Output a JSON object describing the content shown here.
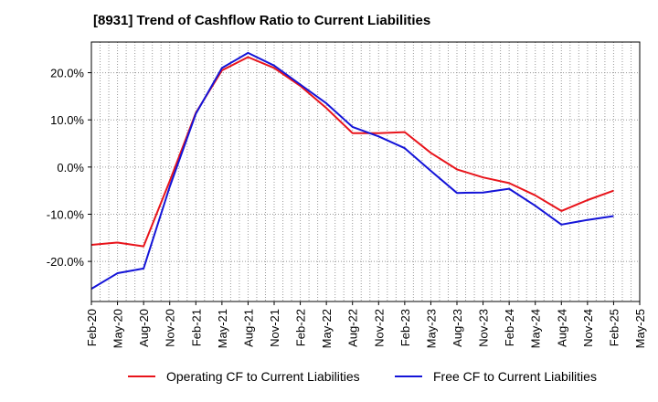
{
  "title": "[8931]  Trend of Cashflow Ratio to Current Liabilities",
  "colors": {
    "operating": "#e8141b",
    "free": "#1414d8",
    "grid": "#999999",
    "axis": "#000000"
  },
  "chart_data": {
    "type": "line",
    "title": "[8931]  Trend of Cashflow Ratio to Current Liabilities",
    "xlabel": "",
    "ylabel": "",
    "x": [
      "Feb-20",
      "May-20",
      "Aug-20",
      "Nov-20",
      "Feb-21",
      "May-21",
      "Aug-21",
      "Nov-21",
      "Feb-22",
      "May-22",
      "Aug-22",
      "Nov-22",
      "Feb-23",
      "May-23",
      "Aug-23",
      "Nov-23",
      "Feb-24",
      "May-24",
      "Aug-24",
      "Nov-24",
      "Feb-25",
      "May-25"
    ],
    "yticks": [
      -20,
      -10,
      0,
      10,
      20
    ],
    "ytick_labels": [
      "-20.0%",
      "-10.0%",
      "0.0%",
      "10.0%",
      "20.0%"
    ],
    "ylim": [
      -28.5,
      26.5
    ],
    "grid": true,
    "legend_position": "bottom",
    "series": [
      {
        "name": "Operating CF to Current Liabilities",
        "color": "#e8141b",
        "values": [
          -16.5,
          -16.0,
          -16.8,
          -3.0,
          11.5,
          20.5,
          23.3,
          21.0,
          17.2,
          12.5,
          7.2,
          7.2,
          7.4,
          3.0,
          -0.5,
          -2.2,
          -3.4,
          -6.0,
          -9.3,
          -7.0,
          -5.0,
          null
        ]
      },
      {
        "name": "Free CF to Current Liabilities",
        "color": "#1414d8",
        "values": [
          -25.8,
          -22.5,
          -21.5,
          -4.2,
          11.3,
          21.0,
          24.2,
          21.5,
          17.5,
          13.5,
          8.5,
          6.5,
          4.0,
          -0.8,
          -5.5,
          -5.4,
          -4.6,
          -8.2,
          -12.2,
          -11.2,
          -10.4,
          null
        ]
      }
    ]
  }
}
